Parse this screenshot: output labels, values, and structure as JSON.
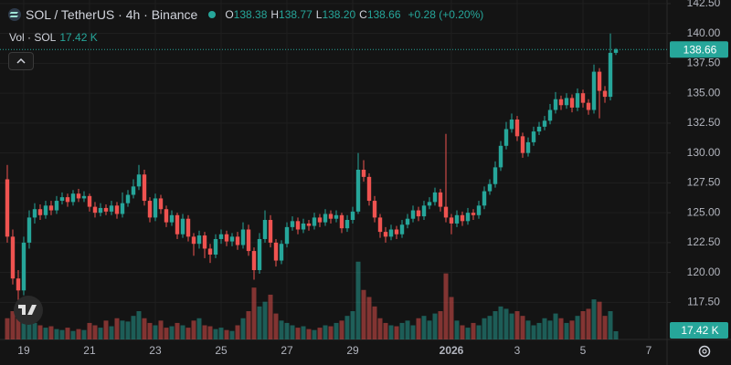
{
  "header": {
    "symbol": "SOL / TetherUS · 4h · Binance",
    "ohlc": [
      {
        "label": "O",
        "value": "138.38"
      },
      {
        "label": "H",
        "value": "138.77"
      },
      {
        "label": "L",
        "value": "138.20"
      },
      {
        "label": "C",
        "value": "138.66"
      }
    ],
    "change": "+0.28 (+0.20%)",
    "volume_title": "Vol · SOL",
    "volume_value": "17.42 K"
  },
  "chart_data": {
    "type": "candlestick",
    "up_color": "#26a69a",
    "down_color": "#ef5350",
    "grid": true,
    "open": [
      127.8,
      123.0,
      119.5,
      118.5,
      122.5,
      124.6,
      125.3,
      124.8,
      125.6,
      125.2,
      126.0,
      126.3,
      125.9,
      126.6,
      126.2,
      126.4,
      125.5,
      125.0,
      125.4,
      125.1,
      125.6,
      124.9,
      125.8,
      126.5,
      127.2,
      128.2,
      126.0,
      124.6,
      126.2,
      125.3,
      124.2,
      124.8,
      123.2,
      124.5,
      123.0,
      122.4,
      123.1,
      122.0,
      121.5,
      122.8,
      123.2,
      122.6,
      123.0,
      122.3,
      123.6,
      121.8,
      120.2,
      122.8,
      124.4,
      122.5,
      121.0,
      122.4,
      123.8,
      124.3,
      123.6,
      124.1,
      123.9,
      124.6,
      124.2,
      124.9,
      124.5,
      124.8,
      123.7,
      124.4,
      125.1,
      128.6,
      128.0,
      126.0,
      124.6,
      123.4,
      123.0,
      123.6,
      123.2,
      124.0,
      124.5,
      125.2,
      124.7,
      125.6,
      125.9,
      126.7,
      125.5,
      124.6,
      124.1,
      124.8,
      124.3,
      125.0,
      124.8,
      125.6,
      126.8,
      127.4,
      128.8,
      130.6,
      132.0,
      132.8,
      131.4,
      130.0,
      130.9,
      131.8,
      132.2,
      132.7,
      133.6,
      134.5,
      134.0,
      134.6,
      133.8,
      135.0,
      134.2,
      133.6,
      136.8,
      135.2,
      134.7,
      138.38
    ],
    "high": [
      129.0,
      123.6,
      120.2,
      123.0,
      125.2,
      125.8,
      125.7,
      126.0,
      126.0,
      126.4,
      126.7,
      126.6,
      126.9,
      127.0,
      126.8,
      126.6,
      125.9,
      125.8,
      125.7,
      126.0,
      125.9,
      126.7,
      126.9,
      127.8,
      129.0,
      128.6,
      126.3,
      126.6,
      126.5,
      125.6,
      125.2,
      125.0,
      124.9,
      124.8,
      123.3,
      123.5,
      123.4,
      122.4,
      123.2,
      123.6,
      123.5,
      123.3,
      123.4,
      124.2,
      124.0,
      122.1,
      123.3,
      125.2,
      124.8,
      122.8,
      122.7,
      124.2,
      124.7,
      124.6,
      124.5,
      124.4,
      125.0,
      124.9,
      125.3,
      125.2,
      125.2,
      125.0,
      124.8,
      125.5,
      130.0,
      129.4,
      128.3,
      126.4,
      124.9,
      123.8,
      124.0,
      123.9,
      124.4,
      124.9,
      125.6,
      125.5,
      126.0,
      126.3,
      127.1,
      127.0,
      131.6,
      124.9,
      125.2,
      125.1,
      125.4,
      125.3,
      126.0,
      127.2,
      127.8,
      129.3,
      131.0,
      132.6,
      133.3,
      133.1,
      131.7,
      131.3,
      132.2,
      132.6,
      133.1,
      134.1,
      135.1,
      134.8,
      135.0,
      134.9,
      135.4,
      135.3,
      134.5,
      137.4,
      137.1,
      135.6,
      140.0,
      138.77
    ],
    "low": [
      122.5,
      119.0,
      116.8,
      118.1,
      122.0,
      124.1,
      124.4,
      124.5,
      124.8,
      124.9,
      125.7,
      125.5,
      125.6,
      125.9,
      125.9,
      125.1,
      124.6,
      124.7,
      124.8,
      124.8,
      124.5,
      124.6,
      125.5,
      126.2,
      126.9,
      125.6,
      124.2,
      124.3,
      124.9,
      123.8,
      123.9,
      122.8,
      122.9,
      122.6,
      121.4,
      122.0,
      121.2,
      120.8,
      121.2,
      122.4,
      122.2,
      122.2,
      121.9,
      122.0,
      121.4,
      119.4,
      119.9,
      122.5,
      122.1,
      120.5,
      120.7,
      122.1,
      123.5,
      123.2,
      123.3,
      123.5,
      123.6,
      123.8,
      123.9,
      124.1,
      124.2,
      123.3,
      123.4,
      124.1,
      124.9,
      127.6,
      125.6,
      124.2,
      122.9,
      122.5,
      122.7,
      122.8,
      122.9,
      123.7,
      124.2,
      124.3,
      124.4,
      125.3,
      125.6,
      125.1,
      124.2,
      123.2,
      123.8,
      123.9,
      124.0,
      124.4,
      124.5,
      125.3,
      126.5,
      127.1,
      128.5,
      130.3,
      131.7,
      131.0,
      129.6,
      129.7,
      130.6,
      131.5,
      131.9,
      132.4,
      133.3,
      133.6,
      133.7,
      133.4,
      133.5,
      133.8,
      133.2,
      133.3,
      132.9,
      134.2,
      134.4,
      138.2
    ],
    "close": [
      123.0,
      119.5,
      118.5,
      122.5,
      124.6,
      125.3,
      124.8,
      125.6,
      125.2,
      126.0,
      126.3,
      125.9,
      126.6,
      126.2,
      126.4,
      125.5,
      125.0,
      125.4,
      125.1,
      125.6,
      124.9,
      125.8,
      126.5,
      127.2,
      128.2,
      126.0,
      124.6,
      126.2,
      125.3,
      124.2,
      124.8,
      123.2,
      124.5,
      123.0,
      122.4,
      123.1,
      122.0,
      121.5,
      122.8,
      123.2,
      122.6,
      123.0,
      122.3,
      123.6,
      121.8,
      120.2,
      122.8,
      124.4,
      122.5,
      121.0,
      122.4,
      123.8,
      124.3,
      123.6,
      124.1,
      123.9,
      124.6,
      124.2,
      124.9,
      124.5,
      124.8,
      123.7,
      124.4,
      125.1,
      128.6,
      128.0,
      126.0,
      124.6,
      123.4,
      123.0,
      123.6,
      123.2,
      124.0,
      124.5,
      125.2,
      124.7,
      125.6,
      125.9,
      126.7,
      125.5,
      124.6,
      124.1,
      124.8,
      124.3,
      125.0,
      124.8,
      125.6,
      126.8,
      127.4,
      128.8,
      130.6,
      132.0,
      132.8,
      131.4,
      130.0,
      130.9,
      131.8,
      132.2,
      132.7,
      133.6,
      134.5,
      134.0,
      134.6,
      133.8,
      135.0,
      134.2,
      133.6,
      136.8,
      135.2,
      134.7,
      138.38,
      138.66
    ],
    "volume": [
      45,
      60,
      70,
      55,
      40,
      35,
      30,
      25,
      28,
      22,
      20,
      25,
      18,
      22,
      20,
      35,
      30,
      25,
      40,
      28,
      45,
      40,
      38,
      50,
      60,
      45,
      35,
      30,
      40,
      25,
      28,
      35,
      30,
      25,
      40,
      45,
      30,
      28,
      22,
      25,
      20,
      18,
      30,
      45,
      60,
      110,
      70,
      80,
      95,
      55,
      40,
      35,
      30,
      25,
      28,
      22,
      20,
      25,
      30,
      28,
      35,
      40,
      50,
      60,
      165,
      105,
      90,
      70,
      45,
      35,
      30,
      28,
      35,
      40,
      30,
      45,
      50,
      40,
      55,
      60,
      140,
      90,
      40,
      30,
      25,
      35,
      30,
      45,
      50,
      60,
      70,
      65,
      55,
      60,
      50,
      40,
      30,
      35,
      45,
      40,
      55,
      45,
      35,
      40,
      50,
      60,
      65,
      85,
      80,
      50,
      60,
      17.42
    ],
    "last_close_label": "138.66",
    "ylim": [
      114.4,
      142.8
    ],
    "yticks": [
      {
        "value": 142.5,
        "label": "142.50"
      },
      {
        "value": 140,
        "label": "140.00"
      },
      {
        "value": 137.5,
        "label": "137.50"
      },
      {
        "value": 135,
        "label": "135.00"
      },
      {
        "value": 132.5,
        "label": "132.50"
      },
      {
        "value": 130,
        "label": "130.00"
      },
      {
        "value": 127.5,
        "label": "127.50"
      },
      {
        "value": 125,
        "label": "125.00"
      },
      {
        "value": 122.5,
        "label": "122.50"
      },
      {
        "value": 120,
        "label": "120.00"
      },
      {
        "value": 117.5,
        "label": "117.50"
      }
    ],
    "vol_ylim": [
      0,
      720
    ],
    "xlim": [
      -1.33,
      120.33
    ],
    "xticks": [
      {
        "value": 3,
        "label": "19"
      },
      {
        "value": 15,
        "label": "21"
      },
      {
        "value": 27,
        "label": "23"
      },
      {
        "value": 39,
        "label": "25"
      },
      {
        "value": 51,
        "label": "27"
      },
      {
        "value": 63,
        "label": "29"
      },
      {
        "value": 81,
        "label": "2026"
      },
      {
        "value": 93,
        "label": "3"
      },
      {
        "value": 105,
        "label": "5"
      },
      {
        "value": 117,
        "label": "7"
      }
    ]
  }
}
